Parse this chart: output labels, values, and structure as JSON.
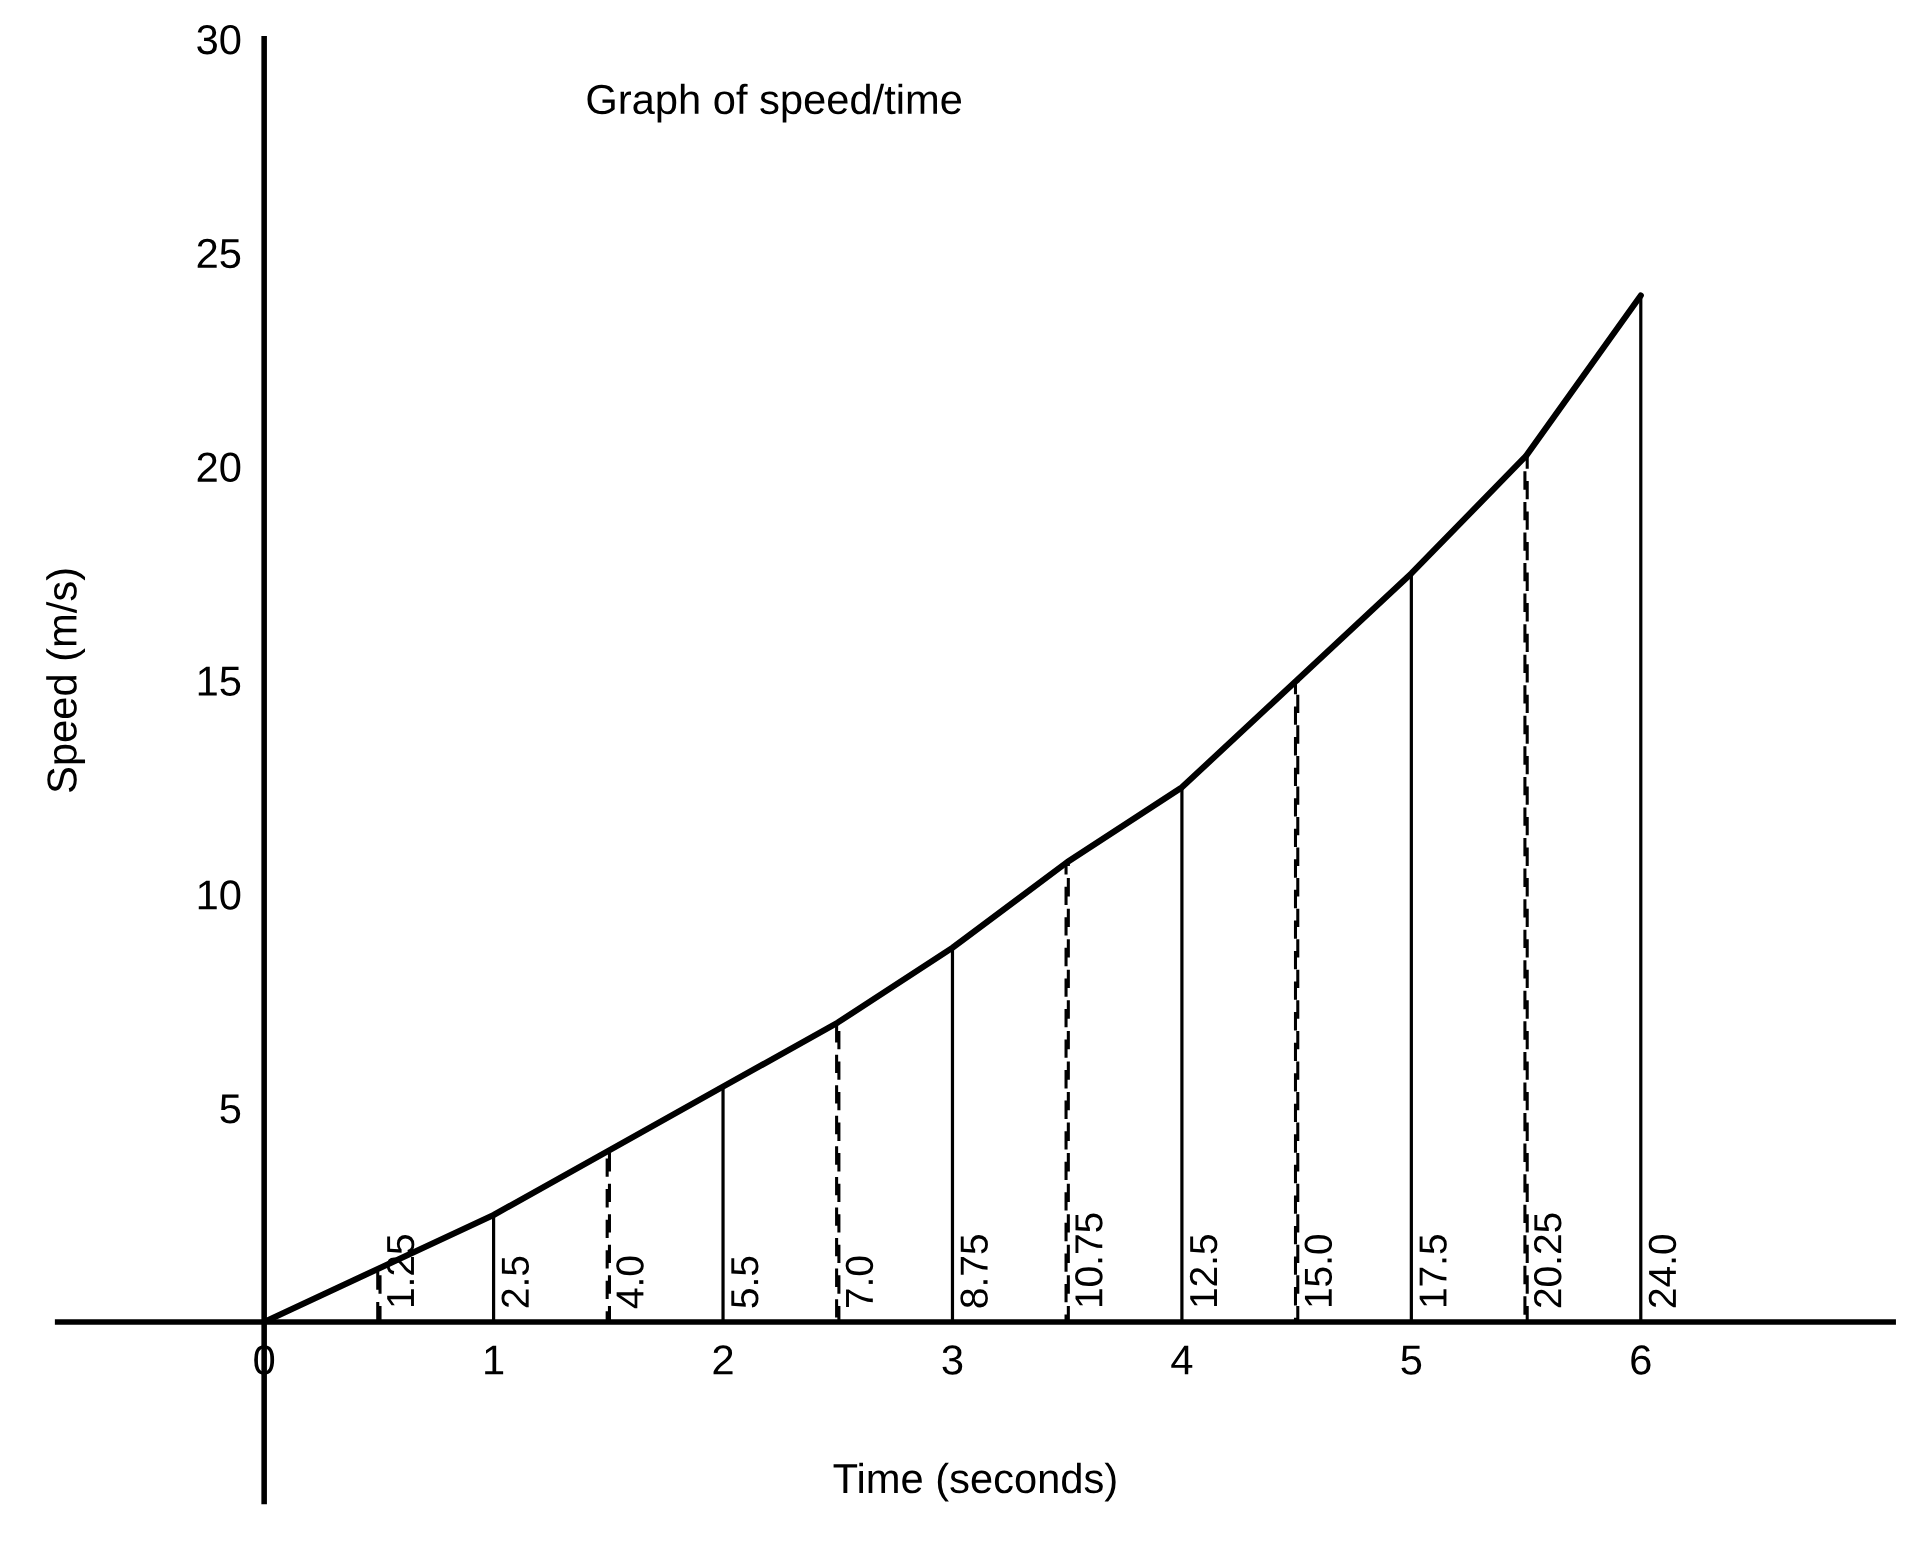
{
  "chart_data": {
    "type": "line",
    "title": "Graph of speed/time",
    "xlabel": "Time (seconds)",
    "ylabel": "Speed (m/s)",
    "xlim": [
      -0.9,
      7.1
    ],
    "ylim": [
      -4.2,
      30
    ],
    "xticks": [
      0,
      1,
      2,
      3,
      4,
      5,
      6
    ],
    "yticks": [
      5,
      10,
      15,
      20,
      25,
      30
    ],
    "series": [
      {
        "color": "#000000",
        "marker": "none",
        "line_style": "solid",
        "x": [
          0,
          0.5,
          1,
          1.5,
          2,
          2.5,
          3,
          3.5,
          4,
          4.5,
          5,
          5.5,
          6
        ],
        "values": [
          0,
          1.25,
          2.5,
          4.0,
          5.5,
          7.0,
          8.75,
          10.75,
          12.5,
          15.0,
          17.5,
          20.25,
          24.0
        ]
      },
      {
        "type": "bar",
        "color": "#000000",
        "line_style": "dashed",
        "x": [
          0.5,
          1.5,
          2.5,
          3.5,
          4.5,
          5.5
        ],
        "values": [
          1.25,
          4.0,
          7.0,
          10.75,
          15.0,
          20.25
        ],
        "value_labels": [
          "1.25",
          "4.0",
          "7.0",
          "10.75",
          "15.0",
          "20.25"
        ]
      },
      {
        "type": "bar",
        "color": "#000000",
        "line_style": "solid",
        "x": [
          1,
          2,
          3,
          4,
          5,
          6
        ],
        "values": [
          2.5,
          5.5,
          8.75,
          12.5,
          17.5,
          24.0
        ],
        "value_labels": [
          "2.5",
          "5.5",
          "8.75",
          "12.5",
          "17.5",
          "24.0"
        ]
      }
    ]
  }
}
